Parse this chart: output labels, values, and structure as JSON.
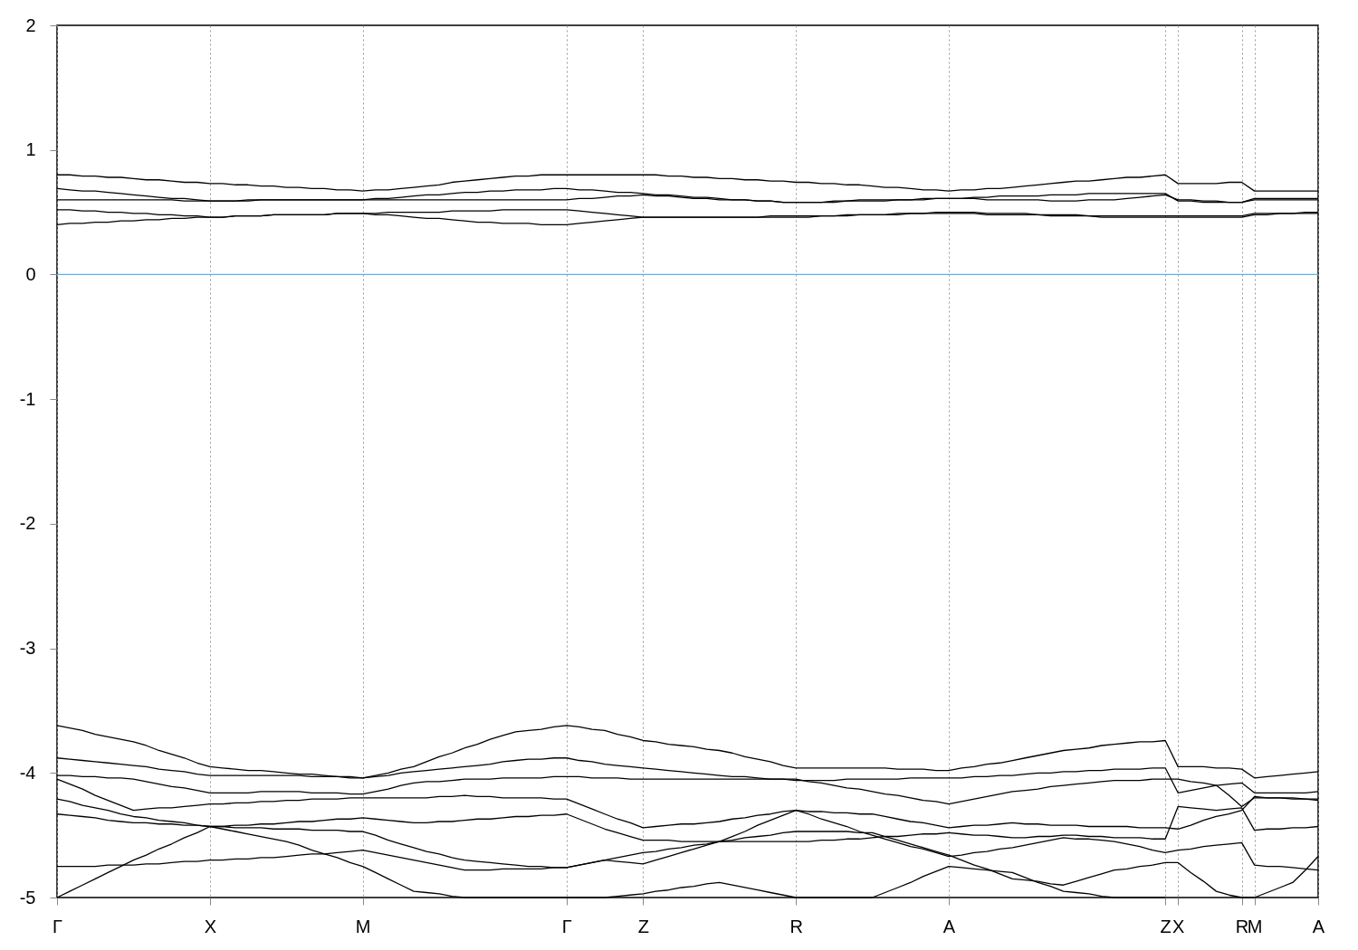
{
  "chart_data": {
    "type": "line",
    "categories": [
      "Γ",
      null,
      null,
      null,
      null,
      null,
      null,
      null,
      null,
      null,
      null,
      null,
      "X",
      null,
      null,
      null,
      null,
      null,
      null,
      null,
      null,
      null,
      null,
      null,
      "M",
      null,
      null,
      null,
      null,
      null,
      null,
      null,
      null,
      null,
      null,
      null,
      null,
      null,
      null,
      null,
      "Γ",
      null,
      null,
      null,
      null,
      null,
      "Z",
      null,
      null,
      null,
      null,
      null,
      null,
      null,
      null,
      null,
      null,
      null,
      "R",
      null,
      null,
      null,
      null,
      null,
      null,
      null,
      null,
      null,
      null,
      null,
      "A",
      null,
      null,
      null,
      null,
      null,
      null,
      null,
      null,
      null,
      null,
      null,
      null,
      null,
      null,
      null,
      null,
      "Z",
      "X",
      null,
      null,
      null,
      null,
      "R",
      "M",
      null,
      null,
      null,
      null,
      "A"
    ],
    "ylim": [
      -5,
      2
    ],
    "yticks": [
      -5,
      -4,
      -3,
      -2,
      -1,
      0,
      1,
      2
    ],
    "grid": "x",
    "legend": false,
    "line_style": "solid",
    "marker": "none",
    "ref_lines": [
      {
        "axis": "y",
        "value": 0,
        "color": "#56b4e9"
      }
    ],
    "series": [
      {
        "color": "#000000",
        "values": [
          0.8,
          0.8,
          0.79,
          0.79,
          0.78,
          0.78,
          0.77,
          0.76,
          0.76,
          0.75,
          0.74,
          0.74,
          0.73,
          0.73,
          0.72,
          0.72,
          0.71,
          0.71,
          0.7,
          0.7,
          0.69,
          0.69,
          0.68,
          0.68,
          0.67,
          0.68,
          0.68,
          0.69,
          0.7,
          0.71,
          0.72,
          0.74,
          0.75,
          0.76,
          0.77,
          0.78,
          0.79,
          0.79,
          0.8,
          0.8,
          0.8,
          0.8,
          0.8,
          0.8,
          0.8,
          0.8,
          0.8,
          0.8,
          0.79,
          0.79,
          0.78,
          0.78,
          0.77,
          0.77,
          0.76,
          0.76,
          0.75,
          0.75,
          0.74,
          0.74,
          0.73,
          0.73,
          0.72,
          0.72,
          0.71,
          0.7,
          0.7,
          0.69,
          0.68,
          0.68,
          0.67,
          0.68,
          0.68,
          0.69,
          0.69,
          0.7,
          0.71,
          0.72,
          0.73,
          0.74,
          0.75,
          0.75,
          0.76,
          0.77,
          0.78,
          0.78,
          0.79,
          0.8,
          0.73,
          0.73,
          0.73,
          0.73,
          0.74,
          0.74,
          0.67,
          0.67,
          0.67,
          0.67,
          0.67,
          0.67
        ]
      },
      {
        "color": "#000000",
        "values": [
          0.69,
          0.68,
          0.67,
          0.67,
          0.66,
          0.65,
          0.64,
          0.63,
          0.62,
          0.61,
          0.61,
          0.6,
          0.59,
          0.59,
          0.59,
          0.59,
          0.6,
          0.6,
          0.6,
          0.6,
          0.6,
          0.6,
          0.6,
          0.6,
          0.6,
          0.61,
          0.61,
          0.62,
          0.63,
          0.64,
          0.64,
          0.65,
          0.66,
          0.66,
          0.67,
          0.67,
          0.68,
          0.68,
          0.68,
          0.69,
          0.69,
          0.68,
          0.68,
          0.67,
          0.66,
          0.66,
          0.65,
          0.64,
          0.64,
          0.63,
          0.62,
          0.62,
          0.61,
          0.6,
          0.6,
          0.59,
          0.59,
          0.58,
          0.58,
          0.58,
          0.58,
          0.59,
          0.59,
          0.6,
          0.6,
          0.6,
          0.6,
          0.6,
          0.61,
          0.61,
          0.61,
          0.61,
          0.62,
          0.62,
          0.63,
          0.63,
          0.63,
          0.63,
          0.64,
          0.64,
          0.64,
          0.65,
          0.65,
          0.65,
          0.65,
          0.65,
          0.65,
          0.65,
          0.59,
          0.59,
          0.58,
          0.58,
          0.58,
          0.58,
          0.61,
          0.61,
          0.61,
          0.61,
          0.61,
          0.61
        ]
      },
      {
        "color": "#000000",
        "values": [
          0.6,
          0.6,
          0.6,
          0.6,
          0.6,
          0.6,
          0.6,
          0.6,
          0.6,
          0.6,
          0.59,
          0.59,
          0.59,
          0.59,
          0.59,
          0.6,
          0.6,
          0.6,
          0.6,
          0.6,
          0.6,
          0.6,
          0.6,
          0.6,
          0.6,
          0.6,
          0.6,
          0.6,
          0.6,
          0.6,
          0.6,
          0.6,
          0.6,
          0.6,
          0.6,
          0.6,
          0.6,
          0.6,
          0.6,
          0.6,
          0.6,
          0.61,
          0.61,
          0.62,
          0.63,
          0.63,
          0.64,
          0.63,
          0.63,
          0.62,
          0.61,
          0.61,
          0.6,
          0.6,
          0.6,
          0.59,
          0.59,
          0.58,
          0.58,
          0.58,
          0.58,
          0.58,
          0.59,
          0.59,
          0.59,
          0.59,
          0.6,
          0.6,
          0.6,
          0.61,
          0.61,
          0.61,
          0.61,
          0.6,
          0.6,
          0.6,
          0.6,
          0.6,
          0.59,
          0.59,
          0.59,
          0.6,
          0.6,
          0.6,
          0.61,
          0.62,
          0.63,
          0.64,
          0.6,
          0.6,
          0.59,
          0.59,
          0.58,
          0.58,
          0.6,
          0.6,
          0.6,
          0.6,
          0.6,
          0.6
        ]
      },
      {
        "color": "#000000",
        "values": [
          0.52,
          0.52,
          0.51,
          0.51,
          0.5,
          0.5,
          0.49,
          0.49,
          0.48,
          0.48,
          0.47,
          0.47,
          0.46,
          0.46,
          0.47,
          0.47,
          0.47,
          0.48,
          0.48,
          0.48,
          0.48,
          0.48,
          0.49,
          0.49,
          0.49,
          0.49,
          0.5,
          0.5,
          0.5,
          0.5,
          0.5,
          0.51,
          0.51,
          0.51,
          0.51,
          0.52,
          0.52,
          0.52,
          0.52,
          0.52,
          0.52,
          0.51,
          0.5,
          0.49,
          0.48,
          0.47,
          0.46,
          0.46,
          0.46,
          0.46,
          0.46,
          0.46,
          0.46,
          0.46,
          0.46,
          0.46,
          0.46,
          0.46,
          0.46,
          0.46,
          0.47,
          0.47,
          0.47,
          0.48,
          0.48,
          0.48,
          0.48,
          0.49,
          0.49,
          0.49,
          0.49,
          0.49,
          0.49,
          0.48,
          0.48,
          0.48,
          0.48,
          0.48,
          0.47,
          0.47,
          0.47,
          0.47,
          0.46,
          0.46,
          0.46,
          0.46,
          0.46,
          0.46,
          0.46,
          0.46,
          0.46,
          0.46,
          0.46,
          0.46,
          0.48,
          0.48,
          0.49,
          0.49,
          0.49,
          0.49
        ]
      },
      {
        "color": "#000000",
        "values": [
          0.4,
          0.41,
          0.41,
          0.42,
          0.42,
          0.43,
          0.43,
          0.44,
          0.44,
          0.45,
          0.45,
          0.46,
          0.46,
          0.46,
          0.47,
          0.47,
          0.47,
          0.48,
          0.48,
          0.48,
          0.48,
          0.48,
          0.49,
          0.49,
          0.49,
          0.48,
          0.48,
          0.47,
          0.46,
          0.45,
          0.45,
          0.44,
          0.43,
          0.42,
          0.42,
          0.41,
          0.41,
          0.41,
          0.4,
          0.4,
          0.4,
          0.41,
          0.42,
          0.43,
          0.44,
          0.45,
          0.46,
          0.46,
          0.46,
          0.46,
          0.46,
          0.46,
          0.46,
          0.46,
          0.46,
          0.46,
          0.47,
          0.47,
          0.47,
          0.47,
          0.47,
          0.47,
          0.48,
          0.48,
          0.48,
          0.48,
          0.49,
          0.49,
          0.49,
          0.5,
          0.5,
          0.5,
          0.5,
          0.49,
          0.49,
          0.49,
          0.49,
          0.48,
          0.48,
          0.48,
          0.48,
          0.47,
          0.47,
          0.47,
          0.47,
          0.47,
          0.47,
          0.47,
          0.47,
          0.47,
          0.47,
          0.47,
          0.47,
          0.47,
          0.49,
          0.49,
          0.49,
          0.49,
          0.5,
          0.5
        ]
      },
      {
        "color": "#000000",
        "values": [
          -3.62,
          -3.64,
          -3.66,
          -3.69,
          -3.71,
          -3.73,
          -3.75,
          -3.78,
          -3.82,
          -3.85,
          -3.88,
          -3.92,
          -3.95,
          -3.96,
          -3.97,
          -3.98,
          -3.98,
          -3.99,
          -4.0,
          -4.01,
          -4.01,
          -4.02,
          -4.03,
          -4.03,
          -4.04,
          -4.02,
          -4.0,
          -3.97,
          -3.95,
          -3.91,
          -3.87,
          -3.84,
          -3.8,
          -3.77,
          -3.73,
          -3.7,
          -3.67,
          -3.66,
          -3.65,
          -3.63,
          -3.62,
          -3.63,
          -3.65,
          -3.66,
          -3.69,
          -3.71,
          -3.74,
          -3.75,
          -3.77,
          -3.78,
          -3.79,
          -3.81,
          -3.82,
          -3.84,
          -3.87,
          -3.89,
          -3.91,
          -3.94,
          -3.96,
          -3.96,
          -3.96,
          -3.96,
          -3.96,
          -3.96,
          -3.96,
          -3.96,
          -3.97,
          -3.97,
          -3.97,
          -3.98,
          -3.98,
          -3.96,
          -3.95,
          -3.93,
          -3.92,
          -3.9,
          -3.88,
          -3.86,
          -3.84,
          -3.82,
          -3.81,
          -3.8,
          -3.78,
          -3.77,
          -3.76,
          -3.75,
          -3.75,
          -3.74,
          -3.95,
          -3.95,
          -3.95,
          -3.96,
          -3.96,
          -3.97,
          -4.04,
          -4.03,
          -4.02,
          -4.01,
          -4.0,
          -3.99
        ]
      },
      {
        "color": "#000000",
        "values": [
          -3.88,
          -3.89,
          -3.9,
          -3.91,
          -3.92,
          -3.93,
          -3.94,
          -3.95,
          -3.97,
          -3.98,
          -3.99,
          -4.01,
          -4.02,
          -4.02,
          -4.02,
          -4.02,
          -4.02,
          -4.02,
          -4.02,
          -4.02,
          -4.03,
          -4.03,
          -4.03,
          -4.04,
          -4.04,
          -4.03,
          -4.02,
          -4.0,
          -3.99,
          -3.98,
          -3.97,
          -3.96,
          -3.95,
          -3.94,
          -3.93,
          -3.91,
          -3.9,
          -3.89,
          -3.89,
          -3.88,
          -3.88,
          -3.9,
          -3.91,
          -3.93,
          -3.94,
          -3.95,
          -3.96,
          -3.97,
          -3.98,
          -3.99,
          -4.0,
          -4.01,
          -4.02,
          -4.03,
          -4.03,
          -4.04,
          -4.05,
          -4.05,
          -4.06,
          -4.06,
          -4.06,
          -4.06,
          -4.05,
          -4.05,
          -4.05,
          -4.05,
          -4.05,
          -4.04,
          -4.04,
          -4.04,
          -4.04,
          -4.04,
          -4.03,
          -4.03,
          -4.02,
          -4.02,
          -4.01,
          -4.0,
          -4.0,
          -3.99,
          -3.99,
          -3.98,
          -3.98,
          -3.97,
          -3.97,
          -3.97,
          -3.96,
          -3.96,
          -4.16,
          -4.14,
          -4.12,
          -4.1,
          -4.09,
          -4.08,
          -4.16,
          -4.16,
          -4.16,
          -4.16,
          -4.16,
          -4.15
        ]
      },
      {
        "color": "#000000",
        "values": [
          -4.02,
          -4.02,
          -4.03,
          -4.03,
          -4.04,
          -4.04,
          -4.05,
          -4.07,
          -4.09,
          -4.11,
          -4.12,
          -4.14,
          -4.16,
          -4.16,
          -4.16,
          -4.16,
          -4.15,
          -4.15,
          -4.15,
          -4.15,
          -4.16,
          -4.16,
          -4.16,
          -4.17,
          -4.17,
          -4.15,
          -4.13,
          -4.1,
          -4.08,
          -4.07,
          -4.07,
          -4.06,
          -4.05,
          -4.05,
          -4.05,
          -4.04,
          -4.04,
          -4.04,
          -4.04,
          -4.03,
          -4.03,
          -4.03,
          -4.04,
          -4.04,
          -4.04,
          -4.05,
          -4.05,
          -4.05,
          -4.05,
          -4.05,
          -4.05,
          -4.05,
          -4.05,
          -4.05,
          -4.05,
          -4.05,
          -4.05,
          -4.05,
          -4.05,
          -4.07,
          -4.08,
          -4.1,
          -4.12,
          -4.13,
          -4.15,
          -4.17,
          -4.18,
          -4.2,
          -4.22,
          -4.23,
          -4.25,
          -4.23,
          -4.21,
          -4.19,
          -4.17,
          -4.15,
          -4.14,
          -4.13,
          -4.11,
          -4.1,
          -4.09,
          -4.08,
          -4.07,
          -4.06,
          -4.06,
          -4.06,
          -4.05,
          -4.05,
          -4.05,
          -4.07,
          -4.08,
          -4.1,
          -4.18,
          -4.27,
          -4.2,
          -4.2,
          -4.2,
          -4.2,
          -4.21,
          -4.21
        ]
      },
      {
        "color": "#000000",
        "values": [
          -4.05,
          -4.09,
          -4.13,
          -4.18,
          -4.22,
          -4.26,
          -4.3,
          -4.29,
          -4.28,
          -4.28,
          -4.27,
          -4.26,
          -4.25,
          -4.25,
          -4.24,
          -4.24,
          -4.23,
          -4.23,
          -4.22,
          -4.22,
          -4.21,
          -4.21,
          -4.21,
          -4.2,
          -4.2,
          -4.2,
          -4.2,
          -4.2,
          -4.2,
          -4.2,
          -4.19,
          -4.19,
          -4.18,
          -4.19,
          -4.19,
          -4.2,
          -4.2,
          -4.2,
          -4.2,
          -4.21,
          -4.21,
          -4.25,
          -4.29,
          -4.33,
          -4.37,
          -4.4,
          -4.44,
          -4.43,
          -4.42,
          -4.41,
          -4.41,
          -4.4,
          -4.39,
          -4.37,
          -4.36,
          -4.34,
          -4.33,
          -4.31,
          -4.3,
          -4.31,
          -4.31,
          -4.32,
          -4.32,
          -4.33,
          -4.33,
          -4.35,
          -4.37,
          -4.39,
          -4.4,
          -4.42,
          -4.44,
          -4.43,
          -4.42,
          -4.42,
          -4.41,
          -4.4,
          -4.41,
          -4.41,
          -4.42,
          -4.42,
          -4.42,
          -4.43,
          -4.43,
          -4.43,
          -4.43,
          -4.44,
          -4.44,
          -4.44,
          -4.45,
          -4.42,
          -4.38,
          -4.35,
          -4.33,
          -4.3,
          -4.19,
          -4.2,
          -4.2,
          -4.21,
          -4.21,
          -4.22
        ]
      },
      {
        "color": "#000000",
        "values": [
          -4.21,
          -4.23,
          -4.26,
          -4.28,
          -4.3,
          -4.33,
          -4.35,
          -4.36,
          -4.38,
          -4.39,
          -4.4,
          -4.42,
          -4.43,
          -4.43,
          -4.42,
          -4.42,
          -4.41,
          -4.41,
          -4.4,
          -4.39,
          -4.39,
          -4.38,
          -4.37,
          -4.37,
          -4.36,
          -4.37,
          -4.38,
          -4.39,
          -4.4,
          -4.4,
          -4.39,
          -4.39,
          -4.38,
          -4.37,
          -4.37,
          -4.36,
          -4.35,
          -4.35,
          -4.34,
          -4.34,
          -4.33,
          -4.37,
          -4.41,
          -4.45,
          -4.48,
          -4.51,
          -4.54,
          -4.54,
          -4.54,
          -4.55,
          -4.55,
          -4.55,
          -4.55,
          -4.55,
          -4.55,
          -4.55,
          -4.55,
          -4.55,
          -4.55,
          -4.55,
          -4.54,
          -4.54,
          -4.53,
          -4.53,
          -4.52,
          -4.51,
          -4.51,
          -4.5,
          -4.49,
          -4.49,
          -4.48,
          -4.49,
          -4.5,
          -4.5,
          -4.51,
          -4.52,
          -4.52,
          -4.51,
          -4.51,
          -4.5,
          -4.5,
          -4.51,
          -4.51,
          -4.52,
          -4.52,
          -4.52,
          -4.53,
          -4.53,
          -4.27,
          -4.28,
          -4.29,
          -4.3,
          -4.29,
          -4.28,
          -4.46,
          -4.45,
          -4.45,
          -4.44,
          -4.44,
          -4.43
        ]
      },
      {
        "color": "#000000",
        "values": [
          -4.33,
          -4.34,
          -4.35,
          -4.36,
          -4.38,
          -4.39,
          -4.4,
          -4.4,
          -4.41,
          -4.41,
          -4.42,
          -4.42,
          -4.43,
          -4.43,
          -4.44,
          -4.44,
          -4.44,
          -4.45,
          -4.45,
          -4.45,
          -4.46,
          -4.46,
          -4.46,
          -4.47,
          -4.47,
          -4.5,
          -4.54,
          -4.57,
          -4.6,
          -4.63,
          -4.65,
          -4.68,
          -4.7,
          -4.71,
          -4.72,
          -4.73,
          -4.74,
          -4.75,
          -4.75,
          -4.76,
          -4.76,
          -4.74,
          -4.72,
          -4.7,
          -4.71,
          -4.72,
          -4.73,
          -4.7,
          -4.67,
          -4.64,
          -4.61,
          -4.58,
          -4.55,
          -4.51,
          -4.47,
          -4.42,
          -4.38,
          -4.34,
          -4.3,
          -4.33,
          -4.37,
          -4.4,
          -4.43,
          -4.47,
          -4.5,
          -4.53,
          -4.56,
          -4.59,
          -4.61,
          -4.64,
          -4.67,
          -4.66,
          -4.64,
          -4.63,
          -4.61,
          -4.6,
          -4.58,
          -4.56,
          -4.54,
          -4.52,
          -4.53,
          -4.53,
          -4.54,
          -4.55,
          -4.57,
          -4.59,
          -4.62,
          -4.64,
          -4.62,
          -4.61,
          -4.59,
          -4.58,
          -4.57,
          -4.56,
          -4.74,
          -4.75,
          -4.75,
          -4.76,
          -4.77,
          -4.78
        ]
      },
      {
        "color": "#000000",
        "values": [
          -4.75,
          -4.75,
          -4.75,
          -4.75,
          -4.74,
          -4.74,
          -4.74,
          -4.73,
          -4.73,
          -4.72,
          -4.71,
          -4.71,
          -4.7,
          -4.7,
          -4.69,
          -4.69,
          -4.68,
          -4.68,
          -4.67,
          -4.66,
          -4.65,
          -4.65,
          -4.64,
          -4.63,
          -4.62,
          -4.64,
          -4.66,
          -4.68,
          -4.7,
          -4.72,
          -4.74,
          -4.76,
          -4.78,
          -4.78,
          -4.78,
          -4.77,
          -4.77,
          -4.77,
          -4.77,
          -4.76,
          -4.76,
          -4.74,
          -4.72,
          -4.7,
          -4.68,
          -4.66,
          -4.64,
          -4.63,
          -4.61,
          -4.6,
          -4.58,
          -4.57,
          -4.55,
          -4.54,
          -4.52,
          -4.51,
          -4.5,
          -4.48,
          -4.47,
          -4.47,
          -4.47,
          -4.47,
          -4.47,
          -4.48,
          -4.48,
          -4.51,
          -4.54,
          -4.57,
          -4.6,
          -4.63,
          -4.66,
          -4.7,
          -4.74,
          -4.77,
          -4.81,
          -4.85,
          -4.86,
          -4.87,
          -4.89,
          -4.9,
          -4.87,
          -4.84,
          -4.81,
          -4.78,
          -4.77,
          -4.75,
          -4.74,
          -4.72,
          -4.72,
          -4.8,
          -4.87,
          -4.95,
          -4.98,
          -5.0,
          -5.0,
          -4.96,
          -4.92,
          -4.88,
          -4.78,
          -4.67
        ]
      },
      {
        "color": "#000000",
        "values": [
          -5.0,
          -4.95,
          -4.9,
          -4.85,
          -4.8,
          -4.75,
          -4.7,
          -4.66,
          -4.61,
          -4.57,
          -4.52,
          -4.48,
          -4.43,
          -4.45,
          -4.47,
          -4.49,
          -4.51,
          -4.53,
          -4.55,
          -4.58,
          -4.62,
          -4.65,
          -4.68,
          -4.72,
          -4.75,
          -4.8,
          -4.85,
          -4.9,
          -4.95,
          -4.96,
          -4.97,
          -4.99,
          -5.0,
          -5.0,
          -5.0,
          -5.0,
          -5.0,
          -5.0,
          -5.0,
          -5.0,
          -5.0,
          -5.0,
          -5.0,
          -5.0,
          -4.99,
          -4.98,
          -4.97,
          -4.95,
          -4.94,
          -4.92,
          -4.91,
          -4.89,
          -4.88,
          -4.9,
          -4.92,
          -4.94,
          -4.96,
          -4.98,
          -5.0,
          -5.0,
          -5.0,
          -5.0,
          -5.0,
          -5.0,
          -5.0,
          -4.96,
          -4.92,
          -4.88,
          -4.83,
          -4.79,
          -4.75,
          -4.76,
          -4.77,
          -4.78,
          -4.79,
          -4.8,
          -4.84,
          -4.88,
          -4.91,
          -4.95,
          -4.96,
          -4.97,
          -4.99,
          -5.0,
          -5.0,
          -5.0,
          -5.0,
          -5.0,
          null,
          null,
          null,
          null,
          null,
          null,
          null,
          null,
          null,
          null,
          null,
          null
        ]
      }
    ]
  }
}
